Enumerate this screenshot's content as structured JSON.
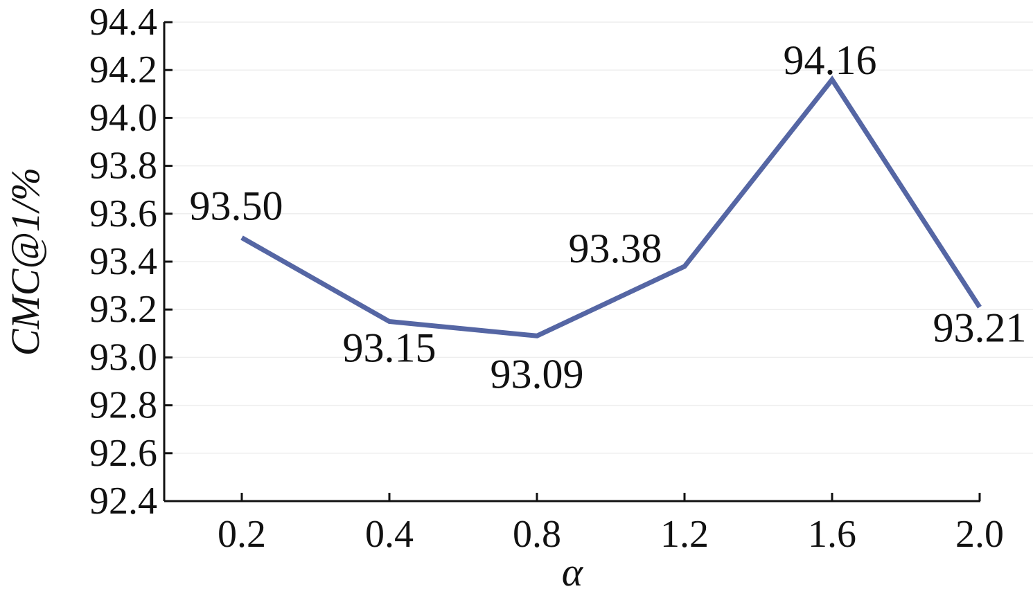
{
  "chart_data": {
    "type": "line",
    "title": "",
    "xlabel": "α",
    "ylabel": "CMC@1/%",
    "categories": [
      "0.2",
      "0.4",
      "0.8",
      "1.2",
      "1.6",
      "2.0"
    ],
    "series": [
      {
        "values": [
          93.5,
          93.15,
          93.09,
          93.38,
          94.16,
          93.21
        ],
        "data_labels": [
          "93.50",
          "93.15",
          "93.09",
          "93.38",
          "94.16",
          "93.21"
        ],
        "color": "#5566a4"
      }
    ],
    "ylim": [
      92.4,
      94.4
    ],
    "yticks": [
      "92.4",
      "92.6",
      "92.8",
      "93.0",
      "93.2",
      "93.4",
      "93.6",
      "93.8",
      "94.0",
      "94.2",
      "94.4"
    ],
    "grid": true,
    "legend": "none"
  },
  "colors": {
    "axis": "#111111",
    "grid": "#eeeeee",
    "line": "#5566a4"
  }
}
